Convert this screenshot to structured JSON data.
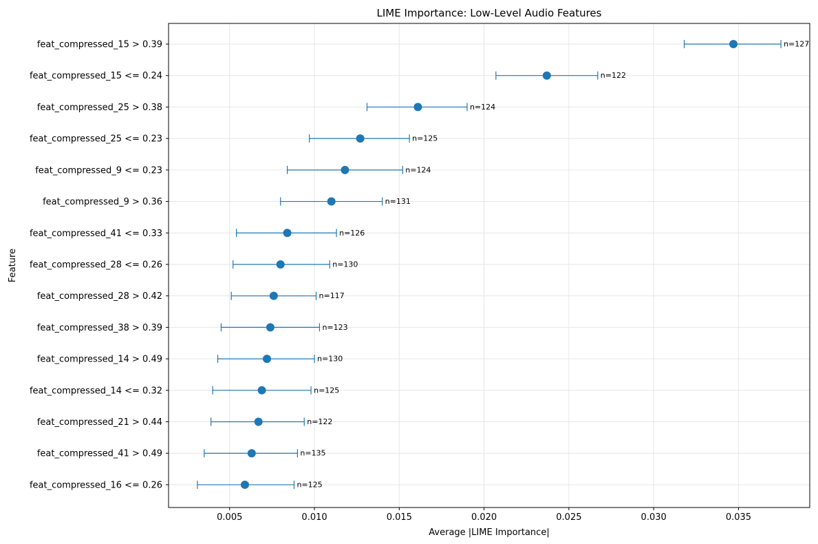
{
  "chart_data": {
    "type": "errorbar-dot",
    "title": "LIME Importance: Low-Level Audio Features",
    "xlabel": "Average |LIME Importance|",
    "ylabel": "Feature",
    "xlim": [
      0.0014,
      0.0392
    ],
    "xticks": [
      0.005,
      0.01,
      0.015,
      0.02,
      0.025,
      0.03,
      0.035
    ],
    "xtick_labels": [
      "0.005",
      "0.010",
      "0.015",
      "0.020",
      "0.025",
      "0.030",
      "0.035"
    ],
    "grid": true,
    "color": "#1f77b4",
    "points": [
      {
        "feature": "feat_compressed_15 > 0.39",
        "mean": 0.0347,
        "lo": 0.0318,
        "hi": 0.0375,
        "n_label": "n=127"
      },
      {
        "feature": "feat_compressed_15 <= 0.24",
        "mean": 0.0237,
        "lo": 0.0207,
        "hi": 0.0267,
        "n_label": "n=122"
      },
      {
        "feature": "feat_compressed_25 > 0.38",
        "mean": 0.0161,
        "lo": 0.0131,
        "hi": 0.019,
        "n_label": "n=124"
      },
      {
        "feature": "feat_compressed_25 <= 0.23",
        "mean": 0.0127,
        "lo": 0.0097,
        "hi": 0.0156,
        "n_label": "n=125"
      },
      {
        "feature": "feat_compressed_9 <= 0.23",
        "mean": 0.0118,
        "lo": 0.0084,
        "hi": 0.0152,
        "n_label": "n=124"
      },
      {
        "feature": "feat_compressed_9 > 0.36",
        "mean": 0.011,
        "lo": 0.008,
        "hi": 0.014,
        "n_label": "n=131"
      },
      {
        "feature": "feat_compressed_41 <= 0.33",
        "mean": 0.0084,
        "lo": 0.0054,
        "hi": 0.0113,
        "n_label": "n=126"
      },
      {
        "feature": "feat_compressed_28 <= 0.26",
        "mean": 0.008,
        "lo": 0.0052,
        "hi": 0.0109,
        "n_label": "n=130"
      },
      {
        "feature": "feat_compressed_28 > 0.42",
        "mean": 0.0076,
        "lo": 0.0051,
        "hi": 0.0101,
        "n_label": "n=117"
      },
      {
        "feature": "feat_compressed_38 > 0.39",
        "mean": 0.0074,
        "lo": 0.0045,
        "hi": 0.0103,
        "n_label": "n=123"
      },
      {
        "feature": "feat_compressed_14 > 0.49",
        "mean": 0.0072,
        "lo": 0.0043,
        "hi": 0.01,
        "n_label": "n=130"
      },
      {
        "feature": "feat_compressed_14 <= 0.32",
        "mean": 0.0069,
        "lo": 0.004,
        "hi": 0.0098,
        "n_label": "n=125"
      },
      {
        "feature": "feat_compressed_21 > 0.44",
        "mean": 0.0067,
        "lo": 0.0039,
        "hi": 0.0094,
        "n_label": "n=122"
      },
      {
        "feature": "feat_compressed_41 > 0.49",
        "mean": 0.0063,
        "lo": 0.0035,
        "hi": 0.009,
        "n_label": "n=135"
      },
      {
        "feature": "feat_compressed_16 <= 0.26",
        "mean": 0.0059,
        "lo": 0.0031,
        "hi": 0.0088,
        "n_label": "n=125"
      }
    ]
  }
}
